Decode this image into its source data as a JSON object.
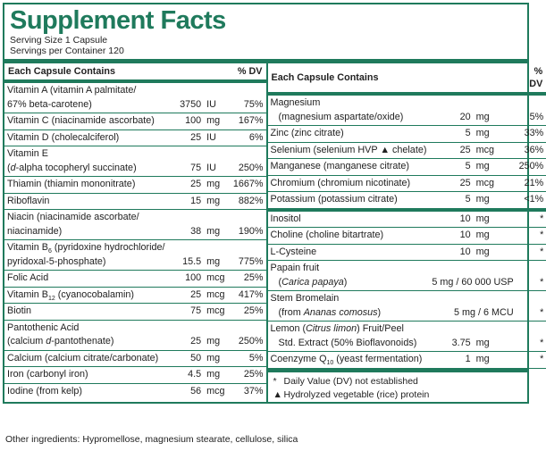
{
  "header": {
    "title": "Supplement Facts",
    "serving_size": "Serving Size 1 Capsule",
    "servings_per_container": "Servings per Container 120"
  },
  "columns": [
    {
      "heading": "Each Capsule Contains",
      "dv_heading": "% DV",
      "indent_continuation": false,
      "groups": [
        [
          {
            "name": [
              [
                "Vitamin A (vitamin A palmitate/"
              ],
              [
                "67% beta-carotene)"
              ]
            ],
            "amount": 3750,
            "unit": "IU",
            "dv": "75%"
          },
          {
            "name": [
              [
                "Vitamin C (niacinamide ascorbate)"
              ]
            ],
            "amount": 100,
            "unit": "mg",
            "dv": "167%"
          },
          {
            "name": [
              [
                "Vitamin D (cholecalciferol)"
              ]
            ],
            "amount": 25,
            "unit": "IU",
            "dv": "6%"
          },
          {
            "name": [
              [
                "Vitamin E"
              ],
              [
                "(",
                {
                  "text": "d",
                  "style": "italic"
                },
                "-alpha tocopheryl succinate)"
              ]
            ],
            "amount": 75,
            "unit": "IU",
            "dv": "250%"
          },
          {
            "name": [
              [
                "Thiamin (thiamin mononitrate)"
              ]
            ],
            "amount": 25,
            "unit": "mg",
            "dv": "1667%"
          },
          {
            "name": [
              [
                "Riboflavin"
              ]
            ],
            "amount": 15,
            "unit": "mg",
            "dv": "882%"
          },
          {
            "name": [
              [
                "Niacin (niacinamide ascorbate/"
              ],
              [
                "niacinamide)"
              ]
            ],
            "amount": 38,
            "unit": "mg",
            "dv": "190%"
          },
          {
            "name": [
              [
                "Vitamin B",
                {
                  "text": "6",
                  "style": "sub"
                },
                " (pyridoxine hydrochloride/"
              ],
              [
                "pyridoxal-5-phosphate)"
              ]
            ],
            "amount": 15.5,
            "unit": "mg",
            "dv": "775%"
          },
          {
            "name": [
              [
                "Folic Acid"
              ]
            ],
            "amount": 100,
            "unit": "mcg",
            "dv": "25%"
          },
          {
            "name": [
              [
                "Vitamin B",
                {
                  "text": "12",
                  "style": "sub"
                },
                " (cyanocobalamin)"
              ]
            ],
            "amount": 25,
            "unit": "mcg",
            "dv": "417%"
          },
          {
            "name": [
              [
                "Biotin"
              ]
            ],
            "amount": 75,
            "unit": "mcg",
            "dv": "25%"
          },
          {
            "name": [
              [
                "Pantothenic Acid"
              ],
              [
                "(calcium ",
                {
                  "text": "d",
                  "style": "italic"
                },
                "-pantothenate)"
              ]
            ],
            "amount": 25,
            "unit": "mg",
            "dv": "250%"
          },
          {
            "name": [
              [
                "Calcium (calcium citrate/carbonate)"
              ]
            ],
            "amount": 50,
            "unit": "mg",
            "dv": "5%"
          },
          {
            "name": [
              [
                "Iron (carbonyl iron)"
              ]
            ],
            "amount": 4.5,
            "unit": "mg",
            "dv": "25%"
          },
          {
            "name": [
              [
                "Iodine (from kelp)"
              ]
            ],
            "amount": 56,
            "unit": "mcg",
            "dv": "37%"
          }
        ]
      ]
    },
    {
      "heading": "Each Capsule Contains",
      "dv_heading": "% DV",
      "indent_continuation": true,
      "groups": [
        [
          {
            "name": [
              [
                "Magnesium"
              ],
              [
                "(magnesium aspartate/oxide)"
              ]
            ],
            "amount": 20,
            "unit": "mg",
            "dv": "5%"
          },
          {
            "name": [
              [
                "Zinc (zinc citrate)"
              ]
            ],
            "amount": 5,
            "unit": "mg",
            "dv": "33%"
          },
          {
            "name": [
              [
                "Selenium (selenium HVP ▲ chelate)"
              ]
            ],
            "amount": 25,
            "unit": "mcg",
            "dv": "36%"
          },
          {
            "name": [
              [
                "Manganese (manganese citrate)"
              ]
            ],
            "amount": 5,
            "unit": "mg",
            "dv": "250%"
          },
          {
            "name": [
              [
                "Chromium (chromium nicotinate)"
              ]
            ],
            "amount": 25,
            "unit": "mcg",
            "dv": "21%"
          },
          {
            "name": [
              [
                "Potassium (potassium citrate)"
              ]
            ],
            "amount": 5,
            "unit": "mg",
            "dv": "<1%"
          }
        ],
        [
          {
            "name": [
              [
                "Inositol"
              ]
            ],
            "amount": 10,
            "unit": "mg",
            "dv": "*"
          },
          {
            "name": [
              [
                "Choline (choline bitartrate)"
              ]
            ],
            "amount": 10,
            "unit": "mg",
            "dv": "*"
          },
          {
            "name": [
              [
                "L-Cysteine"
              ]
            ],
            "amount": 10,
            "unit": "mg",
            "dv": "*"
          },
          {
            "name": [
              [
                "Papain fruit"
              ],
              [
                "(",
                {
                  "text": "Carica papaya",
                  "style": "italic"
                },
                ")"
              ]
            ],
            "amount": "5 mg / 60 000 USP",
            "dv": "*"
          },
          {
            "name": [
              [
                "Stem Bromelain"
              ],
              [
                "(from ",
                {
                  "text": "Ananas comosus",
                  "style": "italic"
                },
                ")"
              ]
            ],
            "amount": "5 mg / 6 MCU",
            "dv": "*"
          },
          {
            "name": [
              [
                "Lemon (",
                {
                  "text": "Citrus limon",
                  "style": "italic"
                },
                ") Fruit/Peel"
              ],
              [
                "Std. Extract (50% Bioflavonoids)"
              ]
            ],
            "amount": 3.75,
            "unit": "mg",
            "dv": "*"
          },
          {
            "name": [
              [
                "Coenzyme Q",
                {
                  "text": "10",
                  "style": "sub"
                },
                " (yeast fermentation)"
              ]
            ],
            "amount": 1,
            "unit": "mg",
            "dv": "*"
          }
        ]
      ],
      "footnotes": [
        {
          "symbol": "*",
          "text": "Daily Value (DV) not established"
        },
        {
          "symbol": "▲",
          "text": "Hydrolyzed vegetable (rice) protein"
        }
      ]
    }
  ],
  "other_ingredients": "Other ingredients: Hypromellose, magnesium stearate, cellulose, silica"
}
